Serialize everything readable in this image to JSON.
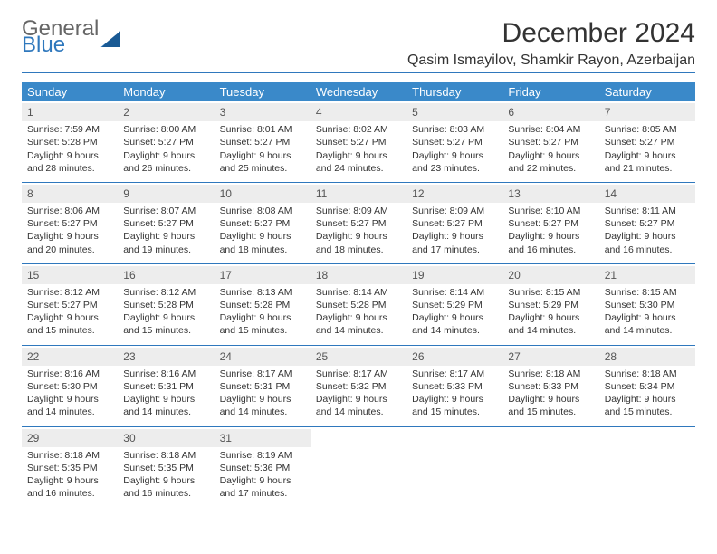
{
  "logo": {
    "line1": "General",
    "line2": "Blue"
  },
  "title": "December 2024",
  "location": "Qasim Ismayilov, Shamkir Rayon, Azerbaijan",
  "accent_color": "#3a89c9",
  "divider_color": "#2f78bd",
  "day_bg": "#ededed",
  "dow": [
    "Sunday",
    "Monday",
    "Tuesday",
    "Wednesday",
    "Thursday",
    "Friday",
    "Saturday"
  ],
  "weeks": [
    [
      {
        "n": "1",
        "sr": "7:59 AM",
        "ss": "5:28 PM",
        "dl": "9 hours and 28 minutes."
      },
      {
        "n": "2",
        "sr": "8:00 AM",
        "ss": "5:27 PM",
        "dl": "9 hours and 26 minutes."
      },
      {
        "n": "3",
        "sr": "8:01 AM",
        "ss": "5:27 PM",
        "dl": "9 hours and 25 minutes."
      },
      {
        "n": "4",
        "sr": "8:02 AM",
        "ss": "5:27 PM",
        "dl": "9 hours and 24 minutes."
      },
      {
        "n": "5",
        "sr": "8:03 AM",
        "ss": "5:27 PM",
        "dl": "9 hours and 23 minutes."
      },
      {
        "n": "6",
        "sr": "8:04 AM",
        "ss": "5:27 PM",
        "dl": "9 hours and 22 minutes."
      },
      {
        "n": "7",
        "sr": "8:05 AM",
        "ss": "5:27 PM",
        "dl": "9 hours and 21 minutes."
      }
    ],
    [
      {
        "n": "8",
        "sr": "8:06 AM",
        "ss": "5:27 PM",
        "dl": "9 hours and 20 minutes."
      },
      {
        "n": "9",
        "sr": "8:07 AM",
        "ss": "5:27 PM",
        "dl": "9 hours and 19 minutes."
      },
      {
        "n": "10",
        "sr": "8:08 AM",
        "ss": "5:27 PM",
        "dl": "9 hours and 18 minutes."
      },
      {
        "n": "11",
        "sr": "8:09 AM",
        "ss": "5:27 PM",
        "dl": "9 hours and 18 minutes."
      },
      {
        "n": "12",
        "sr": "8:09 AM",
        "ss": "5:27 PM",
        "dl": "9 hours and 17 minutes."
      },
      {
        "n": "13",
        "sr": "8:10 AM",
        "ss": "5:27 PM",
        "dl": "9 hours and 16 minutes."
      },
      {
        "n": "14",
        "sr": "8:11 AM",
        "ss": "5:27 PM",
        "dl": "9 hours and 16 minutes."
      }
    ],
    [
      {
        "n": "15",
        "sr": "8:12 AM",
        "ss": "5:27 PM",
        "dl": "9 hours and 15 minutes."
      },
      {
        "n": "16",
        "sr": "8:12 AM",
        "ss": "5:28 PM",
        "dl": "9 hours and 15 minutes."
      },
      {
        "n": "17",
        "sr": "8:13 AM",
        "ss": "5:28 PM",
        "dl": "9 hours and 15 minutes."
      },
      {
        "n": "18",
        "sr": "8:14 AM",
        "ss": "5:28 PM",
        "dl": "9 hours and 14 minutes."
      },
      {
        "n": "19",
        "sr": "8:14 AM",
        "ss": "5:29 PM",
        "dl": "9 hours and 14 minutes."
      },
      {
        "n": "20",
        "sr": "8:15 AM",
        "ss": "5:29 PM",
        "dl": "9 hours and 14 minutes."
      },
      {
        "n": "21",
        "sr": "8:15 AM",
        "ss": "5:30 PM",
        "dl": "9 hours and 14 minutes."
      }
    ],
    [
      {
        "n": "22",
        "sr": "8:16 AM",
        "ss": "5:30 PM",
        "dl": "9 hours and 14 minutes."
      },
      {
        "n": "23",
        "sr": "8:16 AM",
        "ss": "5:31 PM",
        "dl": "9 hours and 14 minutes."
      },
      {
        "n": "24",
        "sr": "8:17 AM",
        "ss": "5:31 PM",
        "dl": "9 hours and 14 minutes."
      },
      {
        "n": "25",
        "sr": "8:17 AM",
        "ss": "5:32 PM",
        "dl": "9 hours and 14 minutes."
      },
      {
        "n": "26",
        "sr": "8:17 AM",
        "ss": "5:33 PM",
        "dl": "9 hours and 15 minutes."
      },
      {
        "n": "27",
        "sr": "8:18 AM",
        "ss": "5:33 PM",
        "dl": "9 hours and 15 minutes."
      },
      {
        "n": "28",
        "sr": "8:18 AM",
        "ss": "5:34 PM",
        "dl": "9 hours and 15 minutes."
      }
    ],
    [
      {
        "n": "29",
        "sr": "8:18 AM",
        "ss": "5:35 PM",
        "dl": "9 hours and 16 minutes."
      },
      {
        "n": "30",
        "sr": "8:18 AM",
        "ss": "5:35 PM",
        "dl": "9 hours and 16 minutes."
      },
      {
        "n": "31",
        "sr": "8:19 AM",
        "ss": "5:36 PM",
        "dl": "9 hours and 17 minutes."
      },
      null,
      null,
      null,
      null
    ]
  ],
  "labels": {
    "sunrise": "Sunrise:",
    "sunset": "Sunset:",
    "daylight": "Daylight:"
  }
}
